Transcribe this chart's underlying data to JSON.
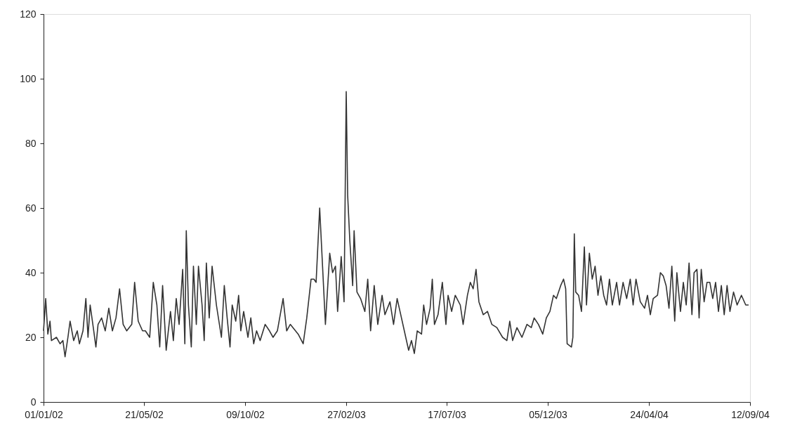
{
  "chart_data": {
    "type": "line",
    "x": [
      "2002-01-01",
      "2002-01-04",
      "2002-01-07",
      "2002-01-10",
      "2002-01-12",
      "2002-01-19",
      "2002-01-24",
      "2002-01-28",
      "2002-01-31",
      "2002-02-04",
      "2002-02-07",
      "2002-02-12",
      "2002-02-17",
      "2002-02-20",
      "2002-02-25",
      "2002-03-01",
      "2002-03-04",
      "2002-03-07",
      "2002-03-12",
      "2002-03-15",
      "2002-03-18",
      "2002-03-23",
      "2002-03-28",
      "2002-04-02",
      "2002-04-07",
      "2002-04-12",
      "2002-04-17",
      "2002-04-22",
      "2002-04-27",
      "2002-05-04",
      "2002-05-08",
      "2002-05-13",
      "2002-05-19",
      "2002-05-23",
      "2002-05-29",
      "2002-06-03",
      "2002-06-08",
      "2002-06-12",
      "2002-06-16",
      "2002-06-21",
      "2002-06-27",
      "2002-07-01",
      "2002-07-05",
      "2002-07-09",
      "2002-07-14",
      "2002-07-17",
      "2002-07-19",
      "2002-07-22",
      "2002-07-26",
      "2002-07-29",
      "2002-08-02",
      "2002-08-05",
      "2002-08-10",
      "2002-08-13",
      "2002-08-16",
      "2002-08-20",
      "2002-08-24",
      "2002-08-30",
      "2002-09-06",
      "2002-09-10",
      "2002-09-14",
      "2002-09-18",
      "2002-09-21",
      "2002-09-26",
      "2002-09-30",
      "2002-10-03",
      "2002-10-07",
      "2002-10-13",
      "2002-10-17",
      "2002-10-21",
      "2002-10-25",
      "2002-10-30",
      "2002-11-06",
      "2002-11-12",
      "2002-11-17",
      "2002-11-23",
      "2002-12-01",
      "2002-12-06",
      "2002-12-11",
      "2002-12-22",
      "2002-12-29",
      "2003-01-03",
      "2003-01-09",
      "2003-01-13",
      "2003-01-16",
      "2003-01-21",
      "2003-01-25",
      "2003-01-29",
      "2003-02-04",
      "2003-02-08",
      "2003-02-12",
      "2003-02-15",
      "2003-02-20",
      "2003-02-24",
      "2003-02-27",
      "2003-03-01",
      "2003-03-04",
      "2003-03-08",
      "2003-03-10",
      "2003-03-14",
      "2003-03-19",
      "2003-03-25",
      "2003-03-29",
      "2003-04-02",
      "2003-04-07",
      "2003-04-12",
      "2003-04-18",
      "2003-04-22",
      "2003-04-29",
      "2003-05-04",
      "2003-05-09",
      "2003-05-13",
      "2003-05-21",
      "2003-05-25",
      "2003-05-29",
      "2003-06-02",
      "2003-06-06",
      "2003-06-12",
      "2003-06-15",
      "2003-06-19",
      "2003-06-24",
      "2003-06-27",
      "2003-06-30",
      "2003-07-05",
      "2003-07-11",
      "2003-07-16",
      "2003-07-19",
      "2003-07-24",
      "2003-07-29",
      "2003-08-05",
      "2003-08-09",
      "2003-08-15",
      "2003-08-19",
      "2003-08-23",
      "2003-08-27",
      "2003-08-31",
      "2003-09-06",
      "2003-09-12",
      "2003-09-18",
      "2003-09-25",
      "2003-10-03",
      "2003-10-09",
      "2003-10-13",
      "2003-10-17",
      "2003-10-23",
      "2003-10-30",
      "2003-11-06",
      "2003-11-12",
      "2003-11-16",
      "2003-11-22",
      "2003-11-28",
      "2003-12-03",
      "2003-12-08",
      "2003-12-13",
      "2003-12-17",
      "2003-12-23",
      "2003-12-27",
      "2003-12-30",
      "2004-01-01",
      "2004-01-07",
      "2004-01-09",
      "2004-01-11",
      "2004-01-13",
      "2004-01-17",
      "2004-01-21",
      "2004-01-25",
      "2004-01-28",
      "2004-02-01",
      "2004-02-05",
      "2004-02-09",
      "2004-02-13",
      "2004-02-17",
      "2004-02-21",
      "2004-02-25",
      "2004-02-29",
      "2004-03-04",
      "2004-03-10",
      "2004-03-14",
      "2004-03-19",
      "2004-03-24",
      "2004-03-29",
      "2004-04-02",
      "2004-04-06",
      "2004-04-12",
      "2004-04-18",
      "2004-04-22",
      "2004-04-26",
      "2004-04-30",
      "2004-05-06",
      "2004-05-10",
      "2004-05-14",
      "2004-05-18",
      "2004-05-22",
      "2004-05-26",
      "2004-05-30",
      "2004-06-02",
      "2004-06-07",
      "2004-06-11",
      "2004-06-15",
      "2004-06-19",
      "2004-06-23",
      "2004-06-26",
      "2004-06-30",
      "2004-07-03",
      "2004-07-06",
      "2004-07-10",
      "2004-07-14",
      "2004-07-18",
      "2004-07-22",
      "2004-07-26",
      "2004-07-30",
      "2004-08-03",
      "2004-08-07",
      "2004-08-11",
      "2004-08-15",
      "2004-08-20",
      "2004-08-25",
      "2004-08-31",
      "2004-09-06",
      "2004-09-10"
    ],
    "series": [
      {
        "color": "#333333",
        "values": [
          22,
          32,
          21,
          25,
          19,
          20,
          18,
          19,
          14,
          20,
          25,
          19,
          22,
          18,
          22,
          32,
          20,
          30,
          22,
          17,
          24,
          26,
          22,
          29,
          22,
          26,
          35,
          24,
          22,
          24,
          37,
          25,
          22,
          22,
          20,
          37,
          30,
          17,
          36,
          16,
          28,
          19,
          32,
          24,
          41,
          18,
          53,
          30,
          17,
          42,
          24,
          42,
          30,
          19,
          43,
          26,
          42,
          30,
          20,
          36,
          26,
          17,
          30,
          25,
          33,
          22,
          28,
          20,
          26,
          18,
          22,
          19,
          24,
          22,
          20,
          22,
          32,
          22,
          24,
          21,
          18,
          26,
          38,
          38,
          37,
          60,
          42,
          24,
          46,
          40,
          42,
          28,
          45,
          31,
          96,
          64,
          50,
          36,
          53,
          34,
          32,
          28,
          38,
          22,
          36,
          24,
          33,
          27,
          31,
          24,
          32,
          28,
          20,
          16,
          19,
          15,
          22,
          21,
          30,
          24,
          29,
          38,
          24,
          27,
          37,
          24,
          33,
          28,
          33,
          30,
          24,
          33,
          37,
          35,
          41,
          31,
          27,
          28,
          24,
          23,
          20,
          19,
          25,
          19,
          23,
          20,
          24,
          23,
          26,
          24,
          21,
          26,
          28,
          33,
          32,
          36,
          38,
          35,
          18,
          17,
          20,
          52,
          34,
          33,
          28,
          48,
          30,
          46,
          38,
          42,
          33,
          39,
          33,
          30,
          38,
          30,
          37,
          30,
          37,
          32,
          38,
          30,
          38,
          31,
          29,
          33,
          27,
          32,
          33,
          40,
          39,
          36,
          29,
          42,
          25,
          40,
          28,
          37,
          30,
          43,
          27,
          40,
          41,
          26,
          41,
          31,
          37,
          37,
          32,
          37,
          28,
          36,
          27,
          36,
          28,
          34,
          30,
          33,
          30,
          30
        ]
      }
    ],
    "xlim": [
      "2002-01-01",
      "2004-09-12"
    ],
    "xticks": [
      {
        "value": "2002-01-01",
        "label": "01/01/02"
      },
      {
        "value": "2002-05-21",
        "label": "21/05/02"
      },
      {
        "value": "2002-10-09",
        "label": "09/10/02"
      },
      {
        "value": "2003-02-27",
        "label": "27/02/03"
      },
      {
        "value": "2003-07-17",
        "label": "17/07/03"
      },
      {
        "value": "2003-12-05",
        "label": "05/12/03"
      },
      {
        "value": "2004-04-24",
        "label": "24/04/04"
      },
      {
        "value": "2004-09-12",
        "label": "12/09/04"
      }
    ],
    "ylim": [
      0,
      120
    ],
    "yticks": [
      0,
      20,
      40,
      60,
      80,
      100,
      120
    ],
    "grid": false,
    "line_style": "solid"
  }
}
